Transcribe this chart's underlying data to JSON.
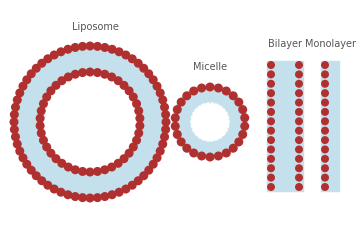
{
  "background_color": "#ffffff",
  "head_color": "#b03030",
  "tail_color": "#c5e0ed",
  "label_color": "#555555",
  "liposome_label": "Liposome",
  "micelle_label": "Micelle",
  "bilayer_label": "Bilayer",
  "monolayer_label": "Monolayer",
  "font_size": 7.0,
  "fig_width": 3.6,
  "fig_height": 2.4,
  "dpi": 100
}
